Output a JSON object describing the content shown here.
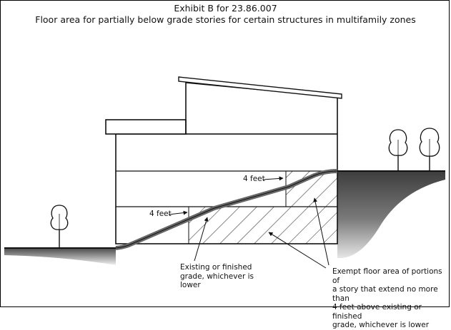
{
  "title": "Exhibit B for 23.86.007",
  "subtitle": "Floor area for partially below grade stories for certain structures in multifamily zones",
  "labels": {
    "four_feet_upper": "4 feet",
    "four_feet_lower": "4 feet",
    "grade": [
      "Existing or finished",
      "grade, whichever is",
      "lower"
    ],
    "exempt": [
      "Exempt floor area of portions of",
      "a story that extend no more than",
      "4 feet above existing or finished",
      "grade, whichever is lower"
    ]
  },
  "colors": {
    "ink": "#111111",
    "ground_gray": "#6e6e6e",
    "hatch": "#222222"
  }
}
